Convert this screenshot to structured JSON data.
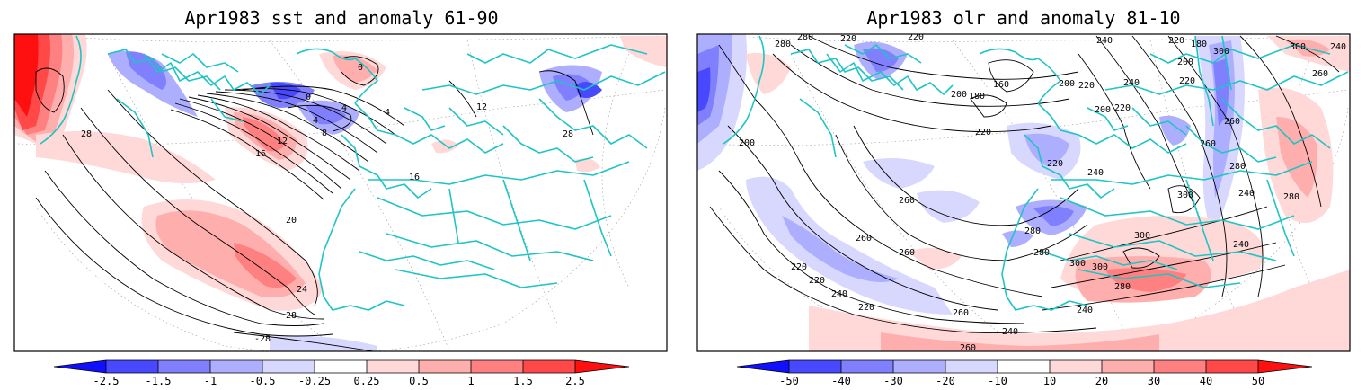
{
  "panels": [
    {
      "title": "Apr1983 sst and anomaly 61-90",
      "colorbar": {
        "labels": [
          "-2.5",
          "-1.5",
          "-1",
          "-0.5",
          "-0.25",
          "0.25",
          "0.5",
          "1",
          "1.5",
          "2.5"
        ],
        "colors": [
          "#1010ff",
          "#4848ff",
          "#8080ff",
          "#aeaeff",
          "#d8d8ff",
          "#ffffff",
          "#ffd8d8",
          "#ffaeae",
          "#ff8080",
          "#ff4848",
          "#ff1010"
        ]
      },
      "contour_labels": [
        "0",
        "0",
        "4",
        "4",
        "4",
        "8",
        "12",
        "16",
        "12",
        "16",
        "20",
        "24",
        "28",
        "28",
        "-28",
        "28"
      ]
    },
    {
      "title": "Apr1983 olr and anomaly 81-10",
      "colorbar": {
        "labels": [
          "-50",
          "-40",
          "-30",
          "-20",
          "-10",
          "10",
          "20",
          "30",
          "40",
          "50"
        ],
        "colors": [
          "#1010ff",
          "#4848ff",
          "#8080ff",
          "#aeaeff",
          "#d8d8ff",
          "#ffffff",
          "#ffd8d8",
          "#ffaeae",
          "#ff8080",
          "#ff4848",
          "#ff1010"
        ]
      },
      "contour_labels": [
        "280",
        "280",
        "220",
        "220",
        "240",
        "220",
        "180",
        "300",
        "300",
        "240",
        "200",
        "180",
        "160",
        "200",
        "220",
        "200",
        "240",
        "220",
        "260",
        "200",
        "220",
        "220",
        "260",
        "260",
        "200",
        "240",
        "280",
        "220",
        "240",
        "300",
        "280",
        "260",
        "260",
        "280",
        "300",
        "260",
        "280",
        "300",
        "300",
        "220",
        "220",
        "240",
        "280",
        "240",
        "220",
        "260",
        "260",
        "240",
        "240"
      ]
    }
  ]
}
